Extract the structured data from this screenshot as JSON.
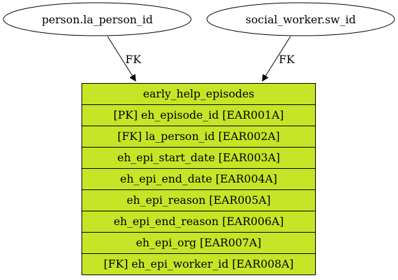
{
  "colors": {
    "table_fill": "#c5e526",
    "stroke": "#000000",
    "background": "#ffffff"
  },
  "nodes": {
    "person": {
      "label": "person.la_person_id"
    },
    "social_worker": {
      "label": "social_worker.sw_id"
    }
  },
  "edges": [
    {
      "from": "person.la_person_id",
      "to": "early_help_episodes",
      "label": "FK"
    },
    {
      "from": "social_worker.sw_id",
      "to": "early_help_episodes",
      "label": "FK"
    }
  ],
  "table": {
    "name": "early_help_episodes",
    "fields": [
      "[PK] eh_episode_id [EAR001A]",
      "[FK] la_person_id [EAR002A]",
      "eh_epi_start_date [EAR003A]",
      "eh_epi_end_date [EAR004A]",
      "eh_epi_reason [EAR005A]",
      "eh_epi_end_reason [EAR006A]",
      "eh_epi_org [EAR007A]",
      "[FK] eh_epi_worker_id [EAR008A]"
    ]
  }
}
